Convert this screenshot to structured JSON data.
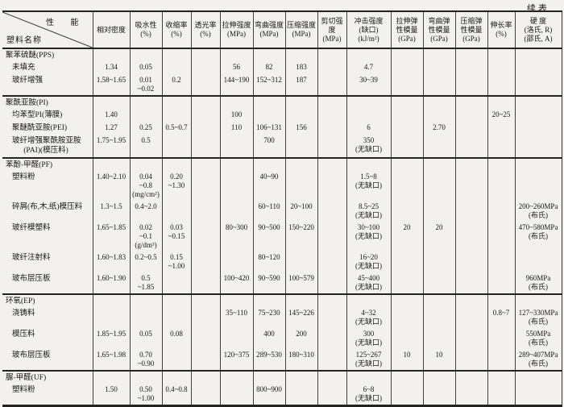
{
  "colors": {
    "paper": "#f2f1ed",
    "ink": "#161616"
  },
  "page": {
    "continued_label": "续表"
  },
  "table": {
    "corner": {
      "top": "性 能",
      "bottom": "塑料名称"
    },
    "columns": [
      "相对密度",
      "吸水性\n(%)",
      "收缩率\n(%)",
      "透光率\n(%)",
      "拉伸强度\n(MPa)",
      "弯曲强度\n(MPa)",
      "压缩强度\n(MPa)",
      "剪切强度\n(MPa)",
      "冲击强度\n(缺口)\n(kJ/m²)",
      "拉伸弹\n性模量\n(GPa)",
      "弯曲弹\n性模量\n(GPa)",
      "压缩弹\n性模量\n(GPa)",
      "伸长率\n(%)",
      "硬  度\n(洛氏, R)\n(邵氏, A)"
    ],
    "sections": [
      {
        "title": "聚苯硫醚(PPS)",
        "rows": [
          {
            "name": "未填充",
            "values": [
              "1.34",
              "0.05",
              "",
              "",
              "56",
              "82",
              "183",
              "",
              "4.7",
              "",
              "",
              "",
              "",
              ""
            ]
          },
          {
            "name": "玻纤增强",
            "values": [
              "1.58~1.65",
              "0.01\n~0.02",
              "0.2",
              "",
              "144~190",
              "152~312",
              "187",
              "",
              "30~39",
              "",
              "",
              "",
              "",
              ""
            ]
          }
        ]
      },
      {
        "title": "聚酰亚胺(PI)",
        "rows": [
          {
            "name": "均苯型PI(薄膜)",
            "values": [
              "1.40",
              "",
              "",
              "",
              "100",
              "",
              "",
              "",
              "",
              "",
              "",
              "",
              "20~25",
              ""
            ]
          },
          {
            "name": "聚醚酰亚胺(PEI)",
            "values": [
              "1.27",
              "0.25",
              "0.5~0.7",
              "",
              "110",
              "106~131",
              "156",
              "",
              "6",
              "",
              "2.70",
              "",
              "",
              ""
            ]
          },
          {
            "name": "玻纤增强聚酰胺亚胺\n      (PAI)(模压料)",
            "values": [
              "1.75~1.95",
              "0.5",
              "",
              "",
              "",
              "700",
              "",
              "",
              "350\n(无缺口)",
              "",
              "",
              "",
              "",
              ""
            ]
          }
        ]
      },
      {
        "title": "苯酚-甲醛(PF)",
        "rows": [
          {
            "name": "塑料粉",
            "values": [
              "1.40~2.10",
              "0.04\n~0.8\n(mg/cm²)",
              "0.20\n~1.30",
              "",
              "",
              "40~90",
              "",
              "",
              "1.5~8\n(无缺口)",
              "",
              "",
              "",
              "",
              ""
            ]
          },
          {
            "name": "碎屑(布,木,纸)模压料",
            "values": [
              "1.3~1.5",
              "0.4~2.0",
              "",
              "",
              "",
              "60~110",
              "20~100",
              "",
              "8.5~25\n(无缺口)",
              "",
              "",
              "",
              "",
              "200~260MPa\n(布氏)"
            ]
          },
          {
            "name": "玻纤模塑料",
            "values": [
              "1.65~1.85",
              "0.02\n~0.1\n(g/dm³)",
              "0.03\n~0.15",
              "",
              "80~300",
              "90~500",
              "150~220",
              "",
              "30~100\n(无缺口)",
              "20",
              "20",
              "",
              "",
              "470~580MPa\n(布氏)"
            ]
          },
          {
            "name": "玻纤注射料",
            "values": [
              "1.60~1.83",
              "0.2~0.5",
              "0.15\n~1.00",
              "",
              "",
              "80~120",
              "",
              "",
              "16~20\n(无缺口)",
              "",
              "",
              "",
              "",
              ""
            ]
          },
          {
            "name": "玻布层压板",
            "values": [
              "1.60~1.90",
              "0.5\n~1.85",
              "",
              "",
              "100~420",
              "90~590",
              "100~579",
              "",
              "45~400\n(无缺口)",
              "",
              "",
              "",
              "",
              "960MPa\n(布氏)"
            ]
          }
        ]
      },
      {
        "title": "环氧(EP)",
        "rows": [
          {
            "name": "浇铸料",
            "values": [
              "",
              "",
              "",
              "",
              "35~110",
              "75~230",
              "145~226",
              "",
              "4~32\n(无缺口)",
              "",
              "",
              "",
              "0.8~7",
              "127~330MPa\n(布氏)"
            ]
          },
          {
            "name": "模压料",
            "values": [
              "1.85~1.95",
              "0.05",
              "0.08",
              "",
              "",
              "400",
              "200",
              "",
              "300\n(无缺口)",
              "",
              "",
              "",
              "",
              "550MPa\n(布氏)"
            ]
          },
          {
            "name": "玻布层压板",
            "values": [
              "1.65~1.98",
              "0.70\n~0.90",
              "",
              "",
              "120~375",
              "289~530",
              "180~310",
              "",
              "125~267\n(无缺口)",
              "10",
              "10",
              "",
              "",
              "289~407MPa\n(布氏)"
            ]
          }
        ]
      },
      {
        "title": "脲-甲醛(UF)",
        "rows": [
          {
            "name": "塑料粉",
            "values": [
              "1.50",
              "0.50\n~1.00",
              "0.4~0.8",
              "",
              "",
              "800~900",
              "",
              "",
              "6~8\n(无缺口)",
              "",
              "",
              "",
              "",
              ""
            ]
          }
        ]
      }
    ]
  }
}
